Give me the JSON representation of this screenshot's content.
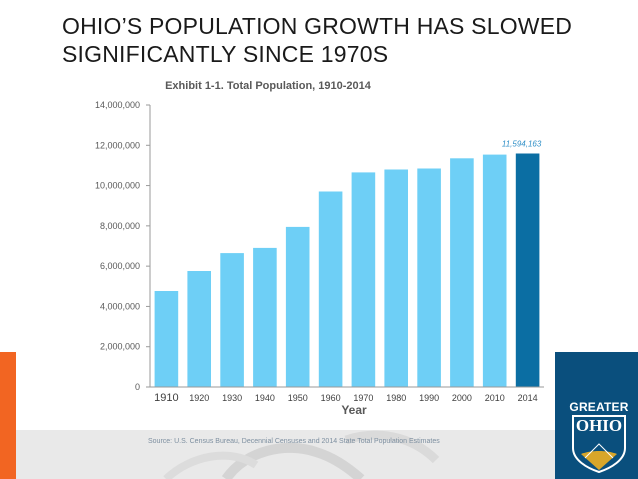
{
  "slide": {
    "title": "OHIO’S POPULATION GROWTH HAS SLOWED SIGNIFICANTLY SINCE 1970S",
    "source": "Source: U.S. Census Bureau, Decennial Censuses and 2014 State Total Population Estimates",
    "logo_top": "GREATER",
    "logo_bottom": "OHIO"
  },
  "colors": {
    "bar": "#6ecff6",
    "highlight_bar": "#0b6ea3",
    "title_text": "#2d2d2d",
    "axis_text": "#595959",
    "highlight_label": "#2f8fc7",
    "orange": "#f26522",
    "navy": "#0a4f7d"
  },
  "chart_data": {
    "type": "bar",
    "title": "Exhibit 1-1. Total Population, 1910-2014",
    "xlabel": "Year",
    "ylabel": "",
    "ylim": [
      0,
      14000000
    ],
    "yticks": [
      "0",
      "2,000,000",
      "4,000,000",
      "6,000,000",
      "8,000,000",
      "10,000,000",
      "12,000,000",
      "14,000,000"
    ],
    "ytick_values": [
      0,
      2000000,
      4000000,
      6000000,
      8000000,
      10000000,
      12000000,
      14000000
    ],
    "categories": [
      "1910",
      "1920",
      "1930",
      "1940",
      "1950",
      "1960",
      "1970",
      "1980",
      "1990",
      "2000",
      "2010",
      "2014"
    ],
    "values": [
      4767121,
      5759394,
      6646697,
      6907612,
      7946627,
      9706397,
      10652017,
      10797630,
      10847115,
      11353140,
      11536504,
      11594163
    ],
    "highlight_index": 11,
    "data_label": "11,594,163"
  }
}
